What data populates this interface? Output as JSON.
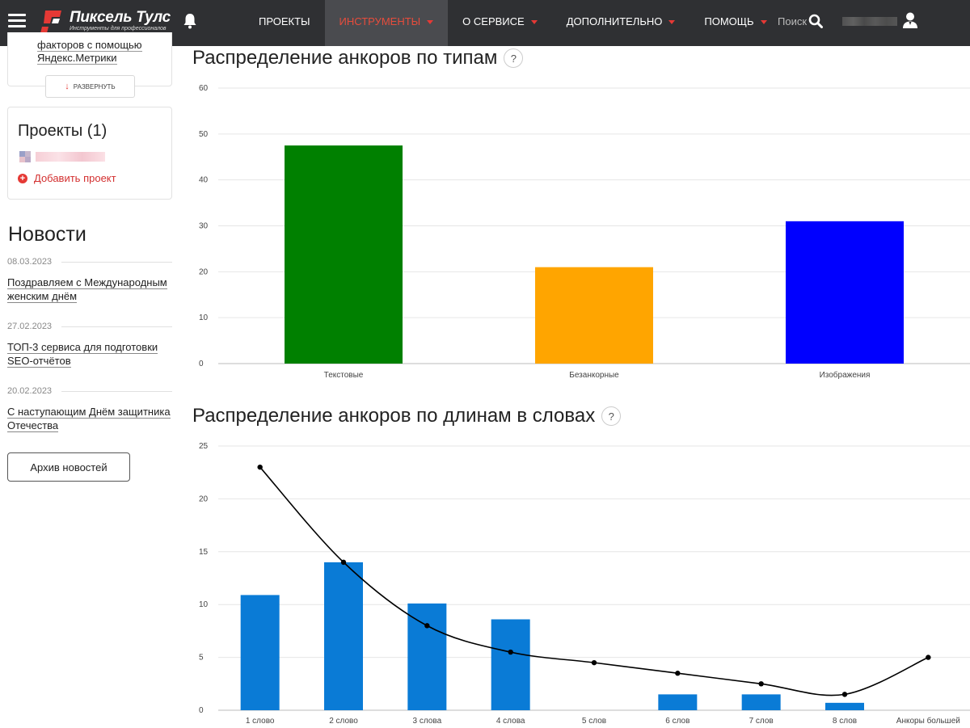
{
  "header": {
    "logo_title": "Пиксель Тулс",
    "logo_subtitle": "Инструменты для профессионалов",
    "nav": [
      {
        "label": "Проекты",
        "active": false,
        "caret": false
      },
      {
        "label": "Инструменты",
        "active": true,
        "caret": true
      },
      {
        "label": "О сервисе",
        "active": false,
        "caret": true
      },
      {
        "label": "Дополнительно",
        "active": false,
        "caret": true
      },
      {
        "label": "Помощь",
        "active": false,
        "caret": true
      }
    ],
    "search_label": "Поиск",
    "icons": {
      "menu": "hamburger-icon",
      "bell": "bell-icon",
      "search": "search-icon",
      "user": "user-icon"
    }
  },
  "sidebar": {
    "tool_card": {
      "text_line1": "факторов с помощью",
      "text_line2": "Яндекс.Метрики",
      "expand_label": "Развернуть"
    },
    "projects": {
      "title": "Проекты (1)",
      "add_label": "Добавить проект"
    },
    "news": {
      "title": "Новости",
      "items": [
        {
          "date": "08.03.2023",
          "line1": "Поздравляем с Международным",
          "line2": "женским днём"
        },
        {
          "date": "27.02.2023",
          "line1": "ТОП-3 сервиса для подготовки",
          "line2": "SEO-отчётов"
        },
        {
          "date": "20.02.2023",
          "line1": "С наступающим Днём защитника",
          "line2": "Отечества"
        }
      ],
      "archive_label": "Архив новостей"
    }
  },
  "main": {
    "chart1_title": "Распределение анкоров по типам",
    "chart2_title": "Распределение анкоров по длинам в словах",
    "help_label": "?"
  },
  "chart_data": [
    {
      "type": "bar",
      "title": "Распределение анкоров по типам",
      "categories": [
        "Текстовые",
        "Безанкорные",
        "Изображения"
      ],
      "values": [
        47.5,
        21,
        31
      ],
      "colors": [
        "#008000",
        "#ffa500",
        "#0000ff"
      ],
      "ylim": [
        0,
        60
      ],
      "yticks": [
        0,
        10,
        20,
        30,
        40,
        50,
        60
      ],
      "grid": true
    },
    {
      "type": "bar",
      "title": "Распределение анкоров по длинам в словах",
      "categories": [
        "1 слово",
        "2 слово",
        "3 слова",
        "4 слова",
        "5 слов",
        "6 слов",
        "7 слов",
        "8 слов",
        "Анкоры большей"
      ],
      "series": [
        {
          "type": "bar",
          "values": [
            10.9,
            14,
            10.1,
            8.6,
            0,
            1.5,
            1.5,
            0.7,
            0
          ],
          "color": "#0a7bd6"
        },
        {
          "type": "line",
          "values": [
            23,
            14,
            8,
            5.5,
            4.5,
            3.5,
            2.5,
            1.5,
            5
          ],
          "color": "#000000"
        }
      ],
      "ylim": [
        0,
        25
      ],
      "yticks": [
        0,
        5,
        10,
        15,
        20,
        25
      ],
      "grid": true
    }
  ]
}
